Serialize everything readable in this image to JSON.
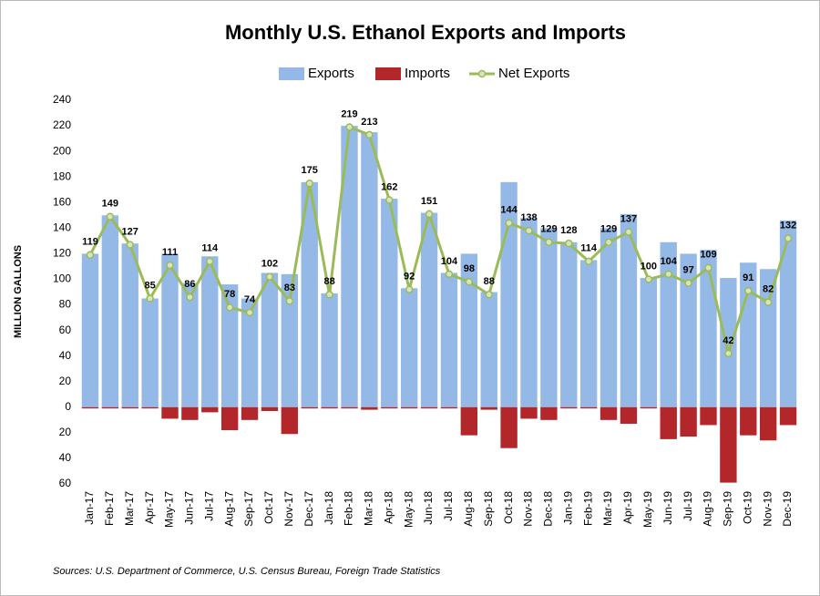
{
  "chart_data": {
    "type": "bar",
    "title": "Monthly U.S. Ethanol Exports and Imports",
    "y_label": "MILLION GALLONS",
    "source": "Sources: U.S. Department of Commerce, U.S. Census Bureau, Foreign Trade Statistics",
    "categories": [
      "Jan-17",
      "Feb-17",
      "Mar-17",
      "Apr-17",
      "May-17",
      "Jun-17",
      "Jul-17",
      "Aug-17",
      "Sep-17",
      "Oct-17",
      "Nov-17",
      "Dec-17",
      "Jan-18",
      "Feb-18",
      "Mar-18",
      "Apr-18",
      "May-18",
      "Jun-18",
      "Jul-18",
      "Aug-18",
      "Sep-18",
      "Oct-18",
      "Nov-18",
      "Dec-18",
      "Jan-19",
      "Feb-19",
      "Mar-19",
      "Apr-19",
      "May-19",
      "Jun-19",
      "Jul-19",
      "Aug-19",
      "Sep-19",
      "Oct-19",
      "Nov-19",
      "Dec-19"
    ],
    "series": [
      {
        "name": "Exports",
        "color": "#95b9e6",
        "values": [
          120,
          150,
          128,
          85,
          120,
          97,
          118,
          96,
          85,
          105,
          104,
          176,
          89,
          220,
          215,
          163,
          93,
          152,
          105,
          120,
          90,
          176,
          148,
          140,
          129,
          115,
          140,
          151,
          101,
          129,
          120,
          123,
          101,
          113,
          108,
          146
        ]
      },
      {
        "name": "Imports",
        "color": "#b3262a",
        "values": [
          -1,
          -1,
          -1,
          -1,
          -9,
          -10,
          -4,
          -18,
          -10,
          -3,
          -21,
          -1,
          -1,
          -1,
          -2,
          -1,
          -1,
          -1,
          -1,
          -22,
          -2,
          -32,
          -9,
          -10,
          -1,
          -1,
          -10,
          -13,
          -1,
          -25,
          -23,
          -14,
          -59,
          -22,
          -26,
          -14
        ]
      },
      {
        "name": "Net Exports",
        "color": "#9bbb59",
        "type": "line",
        "values": [
          119,
          149,
          127,
          85,
          111,
          86,
          114,
          78,
          74,
          102,
          83,
          175,
          88,
          219,
          213,
          162,
          92,
          151,
          104,
          98,
          88,
          144,
          138,
          129,
          128,
          114,
          129,
          137,
          100,
          104,
          97,
          109,
          42,
          91,
          82,
          132
        ]
      }
    ],
    "ylim": [
      -60,
      240
    ],
    "yticks": [
      240,
      220,
      200,
      180,
      160,
      140,
      120,
      100,
      80,
      60,
      40,
      20,
      0,
      {
        "value": -20,
        "label": "20"
      },
      {
        "value": -40,
        "label": "40"
      },
      {
        "value": -60,
        "label": "60"
      }
    ],
    "grid": false,
    "legend": "top"
  }
}
